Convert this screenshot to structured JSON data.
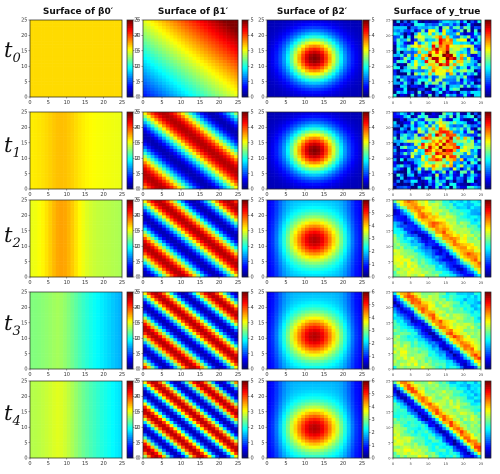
{
  "columns": [
    {
      "title": "Surface of β0′"
    },
    {
      "title": "Surface of β1′"
    },
    {
      "title": "Surface of β2′"
    },
    {
      "title": "Surface of y_true"
    }
  ],
  "rows": [
    {
      "t": "t",
      "sub": "0"
    },
    {
      "t": "t",
      "sub": "1"
    },
    {
      "t": "t",
      "sub": "2"
    },
    {
      "t": "t",
      "sub": "3"
    },
    {
      "t": "t",
      "sub": "4"
    }
  ],
  "chart_data": {
    "type": "heatmap",
    "grid": "25x25",
    "colormap": "jet",
    "x_ticks": [
      0,
      5,
      10,
      15,
      20,
      25
    ],
    "y_ticks": [
      0,
      5,
      10,
      15,
      20,
      25
    ],
    "beta_colorbar_ticks": [
      0,
      1,
      2,
      3,
      4,
      5
    ],
    "beta_colorbar_ticks_row3_col3": [
      0,
      1,
      2,
      3,
      4,
      5,
      6
    ],
    "beta_range_row3_col3": [
      0,
      6
    ],
    "beta_range": [
      0,
      5
    ],
    "y_true_colorbar_ticks": [
      [
        "",
        "",
        "",
        "",
        ""
      ],
      [
        "",
        "",
        "",
        "",
        ""
      ],
      [
        "",
        "",
        "",
        "",
        ""
      ],
      [
        "",
        "",
        "",
        "",
        ""
      ],
      [
        "",
        "",
        "",
        "",
        ""
      ]
    ]
  }
}
